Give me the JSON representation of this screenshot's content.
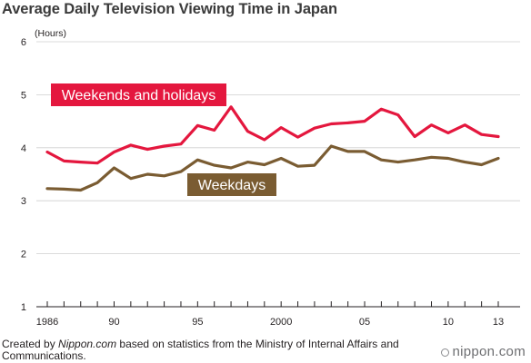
{
  "chart_data": {
    "type": "line",
    "title": "Average Daily Television Viewing Time in Japan",
    "ylabel": "(Hours)",
    "ylim": [
      1,
      6
    ],
    "yticks": [
      1,
      2,
      3,
      4,
      5,
      6
    ],
    "grid": true,
    "x": [
      1986,
      1987,
      1988,
      1989,
      1990,
      1991,
      1992,
      1993,
      1994,
      1995,
      1996,
      1997,
      1998,
      1999,
      2000,
      2001,
      2002,
      2003,
      2004,
      2005,
      2006,
      2007,
      2008,
      2009,
      2010,
      2011,
      2012,
      2013
    ],
    "xlim": [
      1986,
      2013
    ],
    "xtick_labels": [
      {
        "x": 1986,
        "label": "1986"
      },
      {
        "x": 1990,
        "label": "90"
      },
      {
        "x": 1995,
        "label": "95"
      },
      {
        "x": 2000,
        "label": "2000"
      },
      {
        "x": 2005,
        "label": "05"
      },
      {
        "x": 2010,
        "label": "10"
      },
      {
        "x": 2013,
        "label": "13"
      }
    ],
    "series": [
      {
        "name": "Weekends and holidays",
        "color": "#e4173e",
        "values": [
          3.92,
          3.75,
          3.73,
          3.71,
          3.92,
          4.05,
          3.97,
          4.03,
          4.07,
          4.42,
          4.33,
          4.77,
          4.31,
          4.15,
          4.38,
          4.2,
          4.37,
          4.45,
          4.47,
          4.5,
          4.73,
          4.62,
          4.21,
          4.43,
          4.28,
          4.43,
          4.25,
          4.21
        ]
      },
      {
        "name": "Weekdays",
        "color": "#7a5c32",
        "values": [
          3.23,
          3.22,
          3.2,
          3.34,
          3.62,
          3.42,
          3.5,
          3.47,
          3.55,
          3.77,
          3.67,
          3.62,
          3.73,
          3.68,
          3.8,
          3.65,
          3.67,
          4.03,
          3.93,
          3.93,
          3.77,
          3.73,
          3.77,
          3.82,
          3.8,
          3.73,
          3.68,
          3.8
        ]
      }
    ]
  },
  "footer": {
    "created_by": "Created by ",
    "site": "Nippon.com",
    "source": " based on statistics from the Ministry of Internal Affairs and Communications."
  },
  "logo": {
    "text": "nippon.com"
  }
}
